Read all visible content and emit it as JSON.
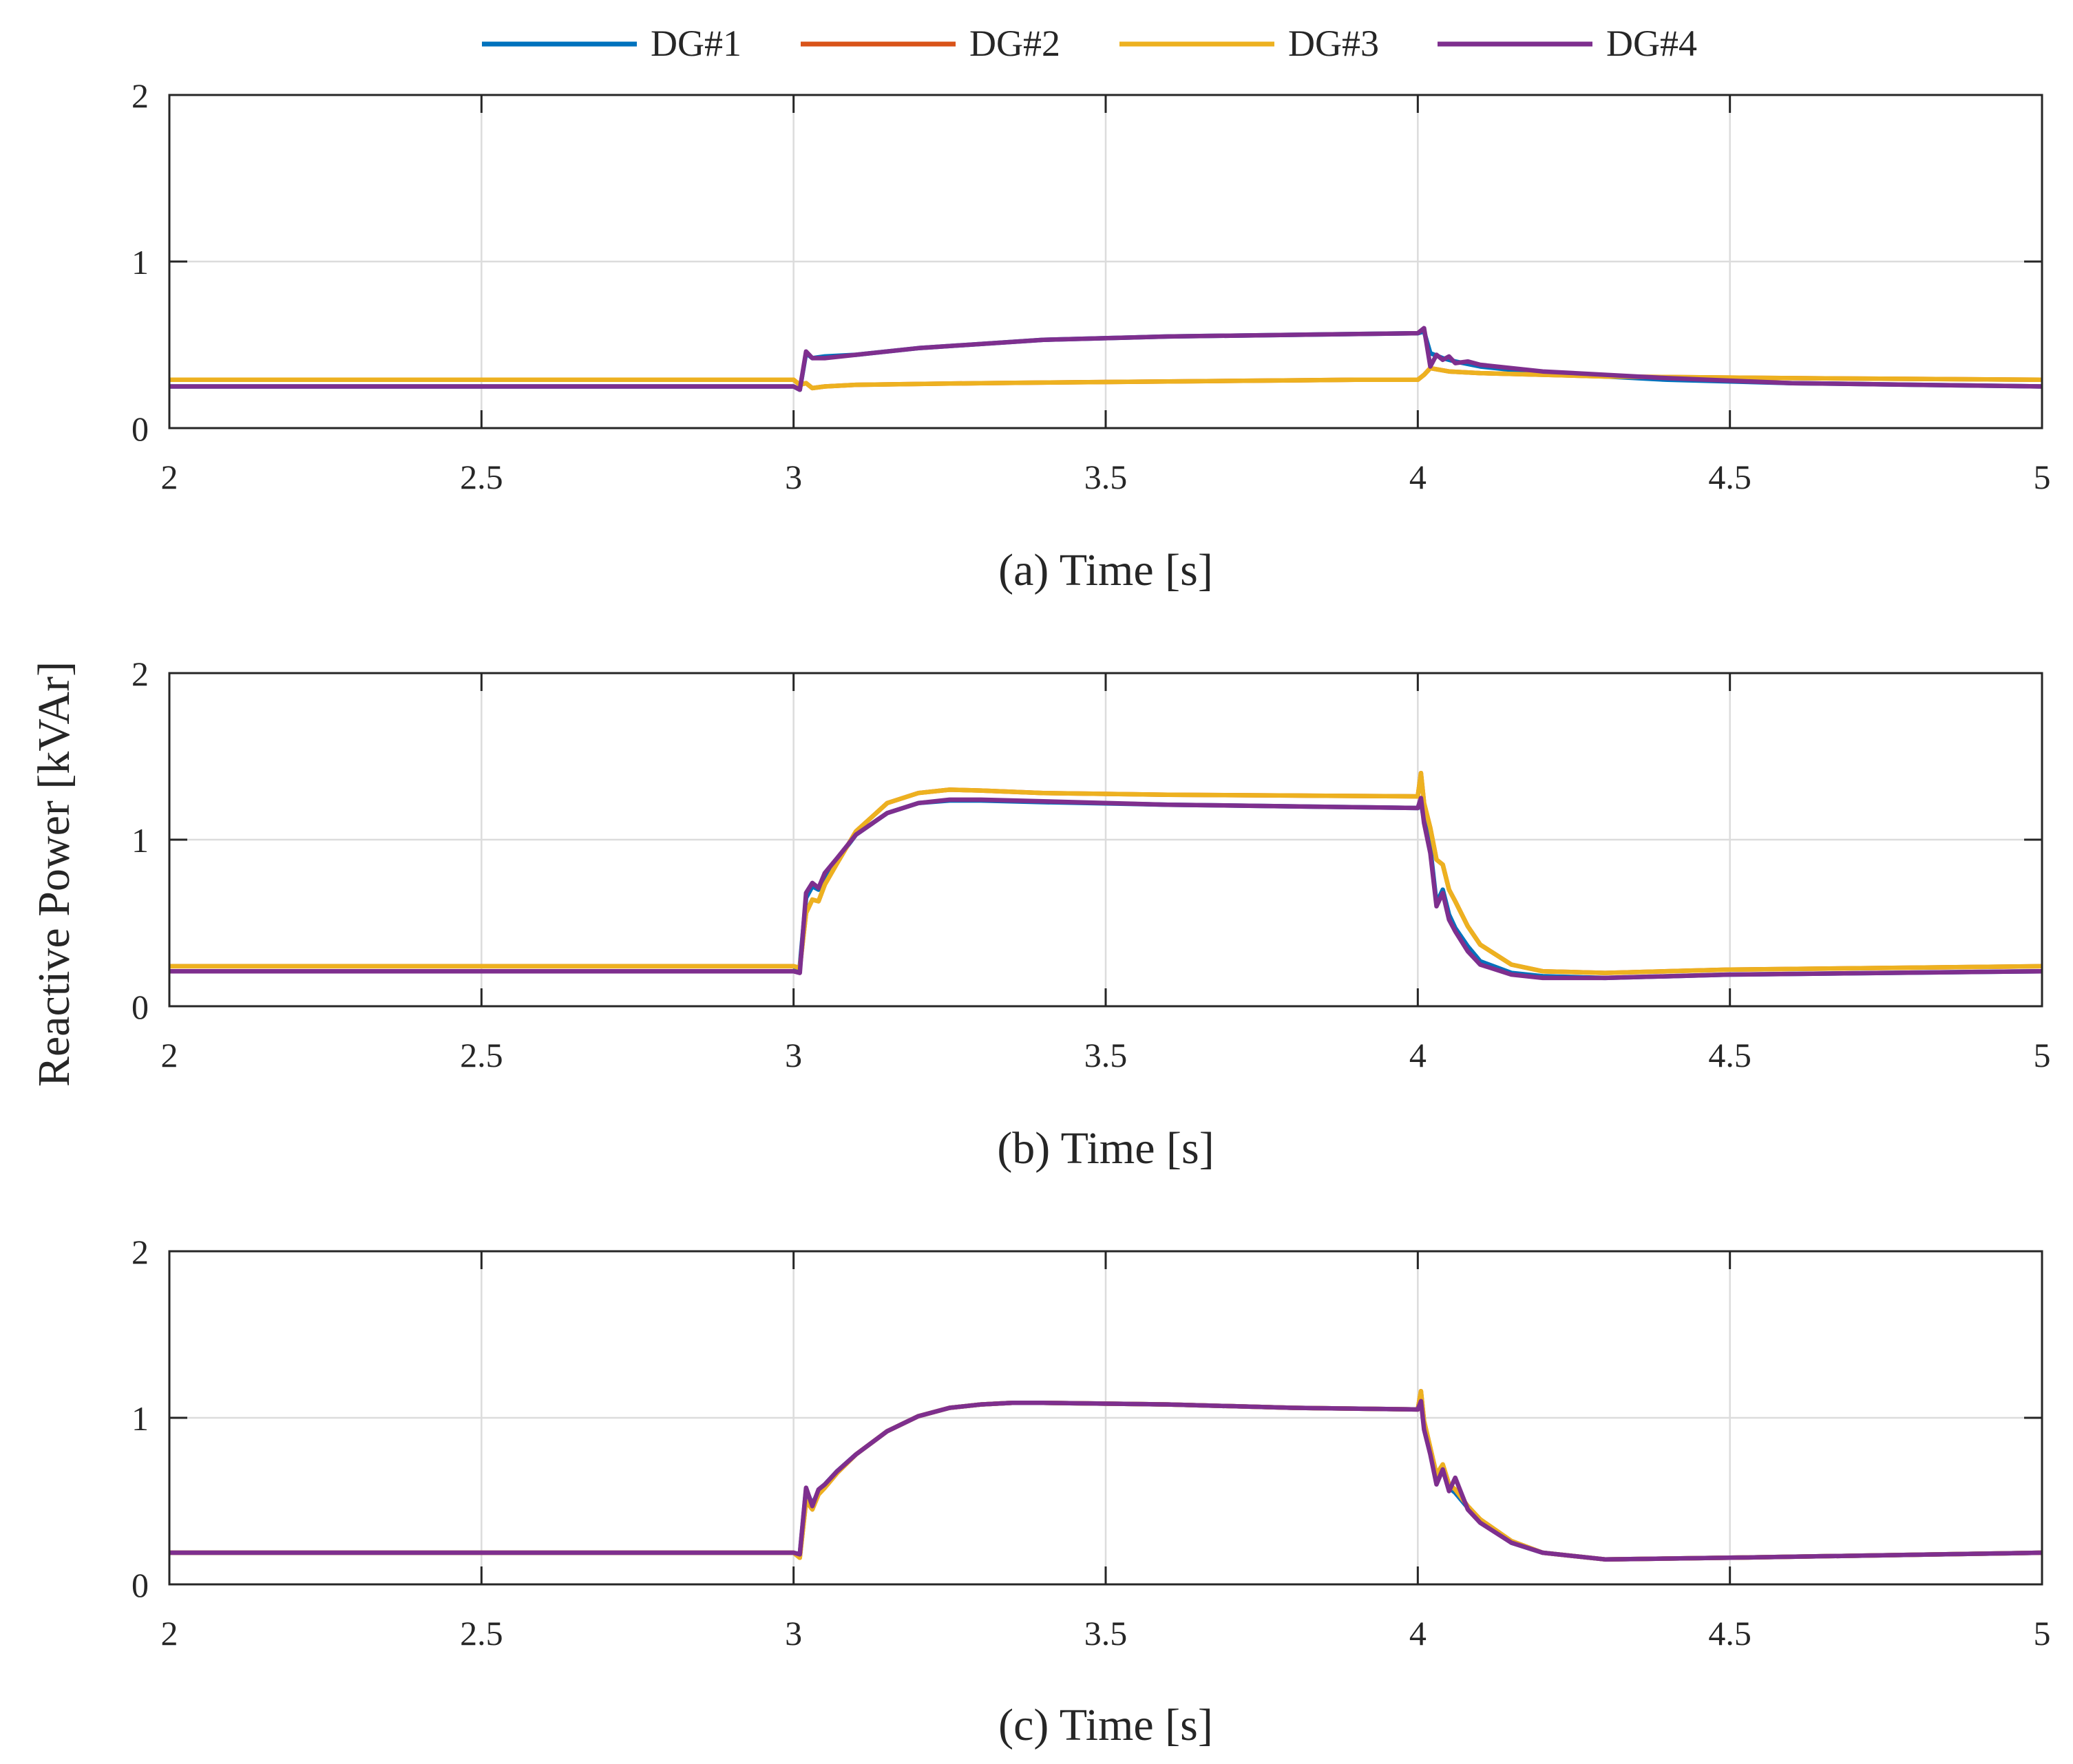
{
  "ylabel": "Reactive Power [kVAr]",
  "legend": [
    {
      "name": "DG#1",
      "color": "#0072BD"
    },
    {
      "name": "DG#2",
      "color": "#D95319"
    },
    {
      "name": "DG#3",
      "color": "#EDB120"
    },
    {
      "name": "DG#4",
      "color": "#7E2F8E"
    }
  ],
  "chart_data": [
    {
      "type": "line",
      "xlabel": "(a) Time [s]",
      "ylabel": "Reactive Power [kVAr]",
      "xlim": [
        2,
        5
      ],
      "ylim": [
        0,
        2
      ],
      "xticks": [
        "2",
        "2.5",
        "3",
        "3.5",
        "4",
        "4.5",
        "5"
      ],
      "yticks": [
        "0",
        "1",
        "2"
      ],
      "grid": true,
      "series": [
        {
          "name": "DG#1",
          "color": "#0072BD",
          "x": [
            2,
            3.0,
            3.01,
            3.02,
            3.03,
            3.05,
            3.1,
            3.2,
            3.4,
            3.6,
            3.8,
            4.0,
            4.01,
            4.02,
            4.04,
            4.06,
            4.1,
            4.2,
            4.4,
            4.6,
            4.8,
            5.0
          ],
          "y": [
            0.25,
            0.25,
            0.23,
            0.45,
            0.42,
            0.43,
            0.44,
            0.48,
            0.53,
            0.55,
            0.56,
            0.57,
            0.58,
            0.45,
            0.42,
            0.4,
            0.37,
            0.33,
            0.29,
            0.27,
            0.26,
            0.25
          ]
        },
        {
          "name": "DG#2",
          "color": "#D95319",
          "x": [
            2,
            3.0,
            3.01,
            3.02,
            3.03,
            3.05,
            3.1,
            3.3,
            3.6,
            3.9,
            4.0,
            4.01,
            4.02,
            4.05,
            4.1,
            4.3,
            4.6,
            5.0
          ],
          "y": [
            0.29,
            0.29,
            0.26,
            0.27,
            0.24,
            0.25,
            0.26,
            0.27,
            0.28,
            0.29,
            0.29,
            0.32,
            0.36,
            0.34,
            0.33,
            0.31,
            0.3,
            0.29
          ]
        },
        {
          "name": "DG#3",
          "color": "#EDB120",
          "x": [
            2,
            3.0,
            3.01,
            3.02,
            3.03,
            3.05,
            3.1,
            3.3,
            3.6,
            3.9,
            4.0,
            4.01,
            4.02,
            4.05,
            4.1,
            4.3,
            4.6,
            5.0
          ],
          "y": [
            0.29,
            0.29,
            0.26,
            0.27,
            0.24,
            0.25,
            0.26,
            0.27,
            0.28,
            0.29,
            0.29,
            0.32,
            0.36,
            0.34,
            0.33,
            0.31,
            0.3,
            0.29
          ]
        },
        {
          "name": "DG#4",
          "color": "#7E2F8E",
          "x": [
            2,
            3.0,
            3.01,
            3.02,
            3.03,
            3.05,
            3.1,
            3.2,
            3.4,
            3.6,
            3.8,
            4.0,
            4.01,
            4.02,
            4.03,
            4.04,
            4.05,
            4.06,
            4.08,
            4.1,
            4.2,
            4.4,
            4.6,
            4.8,
            5.0
          ],
          "y": [
            0.25,
            0.25,
            0.23,
            0.46,
            0.42,
            0.42,
            0.44,
            0.48,
            0.53,
            0.55,
            0.56,
            0.57,
            0.6,
            0.37,
            0.44,
            0.41,
            0.43,
            0.39,
            0.4,
            0.38,
            0.34,
            0.3,
            0.27,
            0.26,
            0.25
          ]
        }
      ]
    },
    {
      "type": "line",
      "xlabel": "(b) Time [s]",
      "ylabel": "Reactive Power [kVAr]",
      "xlim": [
        2,
        5
      ],
      "ylim": [
        0,
        2
      ],
      "xticks": [
        "2",
        "2.5",
        "3",
        "3.5",
        "4",
        "4.5",
        "5"
      ],
      "yticks": [
        "0",
        "1",
        "2"
      ],
      "grid": true,
      "series": [
        {
          "name": "DG#1",
          "color": "#0072BD",
          "x": [
            2,
            3.0,
            3.01,
            3.02,
            3.03,
            3.04,
            3.05,
            3.07,
            3.1,
            3.15,
            3.2,
            3.25,
            3.3,
            3.4,
            3.6,
            3.8,
            4.0,
            4.005,
            4.01,
            4.02,
            4.03,
            4.04,
            4.05,
            4.06,
            4.08,
            4.1,
            4.15,
            4.2,
            4.3,
            4.5,
            5.0
          ],
          "y": [
            0.21,
            0.21,
            0.24,
            0.65,
            0.72,
            0.7,
            0.78,
            0.88,
            1.03,
            1.16,
            1.22,
            1.235,
            1.235,
            1.225,
            1.21,
            1.2,
            1.19,
            1.22,
            1.12,
            0.95,
            0.62,
            0.7,
            0.55,
            0.47,
            0.36,
            0.27,
            0.2,
            0.18,
            0.17,
            0.19,
            0.21
          ]
        },
        {
          "name": "DG#2",
          "color": "#D95319",
          "x": [
            2,
            3.0,
            3.01,
            3.02,
            3.03,
            3.04,
            3.05,
            3.07,
            3.1,
            3.15,
            3.2,
            3.25,
            3.3,
            3.4,
            3.6,
            3.8,
            4.0,
            4.005,
            4.01,
            4.02,
            4.03,
            4.04,
            4.05,
            4.06,
            4.08,
            4.1,
            4.15,
            4.2,
            4.3,
            4.5,
            5.0
          ],
          "y": [
            0.24,
            0.24,
            0.23,
            0.56,
            0.64,
            0.63,
            0.73,
            0.86,
            1.05,
            1.22,
            1.28,
            1.3,
            1.295,
            1.28,
            1.27,
            1.265,
            1.26,
            1.4,
            1.22,
            1.07,
            0.88,
            0.85,
            0.7,
            0.63,
            0.48,
            0.37,
            0.25,
            0.21,
            0.2,
            0.22,
            0.24
          ]
        },
        {
          "name": "DG#3",
          "color": "#EDB120",
          "x": [
            2,
            3.0,
            3.01,
            3.02,
            3.03,
            3.04,
            3.05,
            3.07,
            3.1,
            3.15,
            3.2,
            3.25,
            3.3,
            3.4,
            3.6,
            3.8,
            4.0,
            4.005,
            4.01,
            4.02,
            4.03,
            4.04,
            4.05,
            4.06,
            4.08,
            4.1,
            4.15,
            4.2,
            4.3,
            4.5,
            5.0
          ],
          "y": [
            0.24,
            0.24,
            0.23,
            0.56,
            0.64,
            0.63,
            0.73,
            0.86,
            1.05,
            1.22,
            1.28,
            1.3,
            1.295,
            1.28,
            1.27,
            1.265,
            1.26,
            1.4,
            1.22,
            1.07,
            0.88,
            0.85,
            0.7,
            0.63,
            0.48,
            0.37,
            0.25,
            0.21,
            0.2,
            0.22,
            0.24
          ]
        },
        {
          "name": "DG#4",
          "color": "#7E2F8E",
          "x": [
            2,
            3.0,
            3.01,
            3.02,
            3.03,
            3.04,
            3.05,
            3.07,
            3.1,
            3.15,
            3.2,
            3.25,
            3.3,
            3.4,
            3.6,
            3.8,
            4.0,
            4.005,
            4.01,
            4.02,
            4.03,
            4.04,
            4.05,
            4.06,
            4.08,
            4.1,
            4.15,
            4.2,
            4.3,
            4.5,
            5.0
          ],
          "y": [
            0.21,
            0.21,
            0.2,
            0.68,
            0.74,
            0.71,
            0.8,
            0.89,
            1.03,
            1.16,
            1.22,
            1.24,
            1.24,
            1.23,
            1.21,
            1.2,
            1.19,
            1.25,
            1.1,
            0.92,
            0.6,
            0.68,
            0.52,
            0.45,
            0.33,
            0.25,
            0.19,
            0.17,
            0.17,
            0.19,
            0.21
          ]
        }
      ]
    },
    {
      "type": "line",
      "xlabel": "(c) Time [s]",
      "ylabel": "Reactive Power [kVAr]",
      "xlim": [
        2,
        5
      ],
      "ylim": [
        0,
        2
      ],
      "xticks": [
        "2",
        "2.5",
        "3",
        "3.5",
        "4",
        "4.5",
        "5"
      ],
      "yticks": [
        "0",
        "1",
        "2"
      ],
      "grid": true,
      "series": [
        {
          "name": "DG#1",
          "color": "#0072BD",
          "x": [
            2,
            3.0,
            3.01,
            3.02,
            3.03,
            3.04,
            3.05,
            3.07,
            3.1,
            3.15,
            3.2,
            3.25,
            3.3,
            3.35,
            3.4,
            3.6,
            3.8,
            4.0,
            4.005,
            4.01,
            4.02,
            4.03,
            4.04,
            4.05,
            4.06,
            4.08,
            4.1,
            4.15,
            4.2,
            4.3,
            4.5,
            5.0
          ],
          "y": [
            0.19,
            0.19,
            0.18,
            0.57,
            0.48,
            0.56,
            0.6,
            0.68,
            0.78,
            0.92,
            1.01,
            1.06,
            1.08,
            1.09,
            1.09,
            1.08,
            1.06,
            1.05,
            1.12,
            0.95,
            0.8,
            0.62,
            0.7,
            0.58,
            0.55,
            0.46,
            0.38,
            0.25,
            0.19,
            0.15,
            0.16,
            0.19
          ]
        },
        {
          "name": "DG#2",
          "color": "#D95319",
          "x": [
            2,
            3.0,
            3.01,
            3.02,
            3.03,
            3.04,
            3.05,
            3.07,
            3.1,
            3.15,
            3.2,
            3.25,
            3.3,
            3.35,
            3.4,
            3.6,
            3.8,
            4.0,
            4.005,
            4.01,
            4.02,
            4.03,
            4.04,
            4.05,
            4.06,
            4.08,
            4.1,
            4.15,
            4.2,
            4.3,
            4.5,
            5.0
          ],
          "y": [
            0.19,
            0.19,
            0.16,
            0.5,
            0.45,
            0.54,
            0.58,
            0.67,
            0.78,
            0.92,
            1.01,
            1.06,
            1.08,
            1.09,
            1.09,
            1.08,
            1.06,
            1.05,
            1.16,
            0.98,
            0.82,
            0.66,
            0.72,
            0.6,
            0.57,
            0.47,
            0.39,
            0.26,
            0.19,
            0.15,
            0.16,
            0.19
          ]
        },
        {
          "name": "DG#3",
          "color": "#EDB120",
          "x": [
            2,
            3.0,
            3.01,
            3.02,
            3.03,
            3.04,
            3.05,
            3.07,
            3.1,
            3.15,
            3.2,
            3.25,
            3.3,
            3.35,
            3.4,
            3.6,
            3.8,
            4.0,
            4.005,
            4.01,
            4.02,
            4.03,
            4.04,
            4.05,
            4.06,
            4.08,
            4.1,
            4.15,
            4.2,
            4.3,
            4.5,
            5.0
          ],
          "y": [
            0.19,
            0.19,
            0.16,
            0.5,
            0.45,
            0.54,
            0.58,
            0.67,
            0.78,
            0.92,
            1.01,
            1.06,
            1.08,
            1.09,
            1.09,
            1.08,
            1.06,
            1.05,
            1.16,
            0.98,
            0.82,
            0.66,
            0.72,
            0.6,
            0.57,
            0.47,
            0.39,
            0.26,
            0.19,
            0.15,
            0.16,
            0.19
          ]
        },
        {
          "name": "DG#4",
          "color": "#7E2F8E",
          "x": [
            2,
            3.0,
            3.01,
            3.02,
            3.03,
            3.04,
            3.05,
            3.07,
            3.1,
            3.15,
            3.2,
            3.25,
            3.3,
            3.35,
            3.4,
            3.6,
            3.8,
            4.0,
            4.005,
            4.01,
            4.02,
            4.03,
            4.04,
            4.05,
            4.06,
            4.08,
            4.1,
            4.15,
            4.2,
            4.3,
            4.5,
            5.0
          ],
          "y": [
            0.19,
            0.19,
            0.18,
            0.58,
            0.47,
            0.57,
            0.6,
            0.68,
            0.78,
            0.92,
            1.01,
            1.06,
            1.08,
            1.09,
            1.09,
            1.08,
            1.06,
            1.05,
            1.1,
            0.93,
            0.78,
            0.6,
            0.69,
            0.56,
            0.64,
            0.45,
            0.37,
            0.25,
            0.19,
            0.15,
            0.16,
            0.19
          ]
        }
      ]
    }
  ]
}
